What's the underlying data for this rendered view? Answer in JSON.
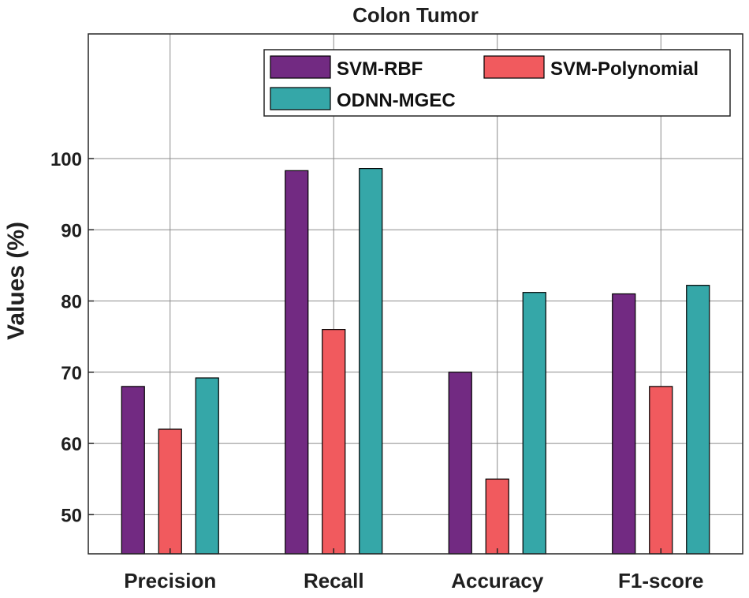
{
  "chart_data": {
    "type": "bar",
    "title": "Colon Tumor",
    "ylabel": "Values (%)",
    "xlabel": "",
    "categories": [
      "Precision",
      "Recall",
      "Accuracy",
      "F1-score"
    ],
    "series": [
      {
        "name": "SVM-RBF",
        "color": "#722a82",
        "values": [
          68,
          98.3,
          70,
          81
        ]
      },
      {
        "name": "SVM-Polynomial",
        "color": "#f15a5e",
        "values": [
          62,
          76,
          55,
          68
        ]
      },
      {
        "name": "ODNN-MGEC",
        "color": "#35a7a8",
        "values": [
          69.2,
          98.6,
          81.2,
          82.2
        ]
      }
    ],
    "ylim": [
      44.5,
      117.5
    ],
    "yticks": [
      50,
      60,
      70,
      80,
      90,
      100
    ],
    "grid": true,
    "legend_position": "top-right"
  }
}
